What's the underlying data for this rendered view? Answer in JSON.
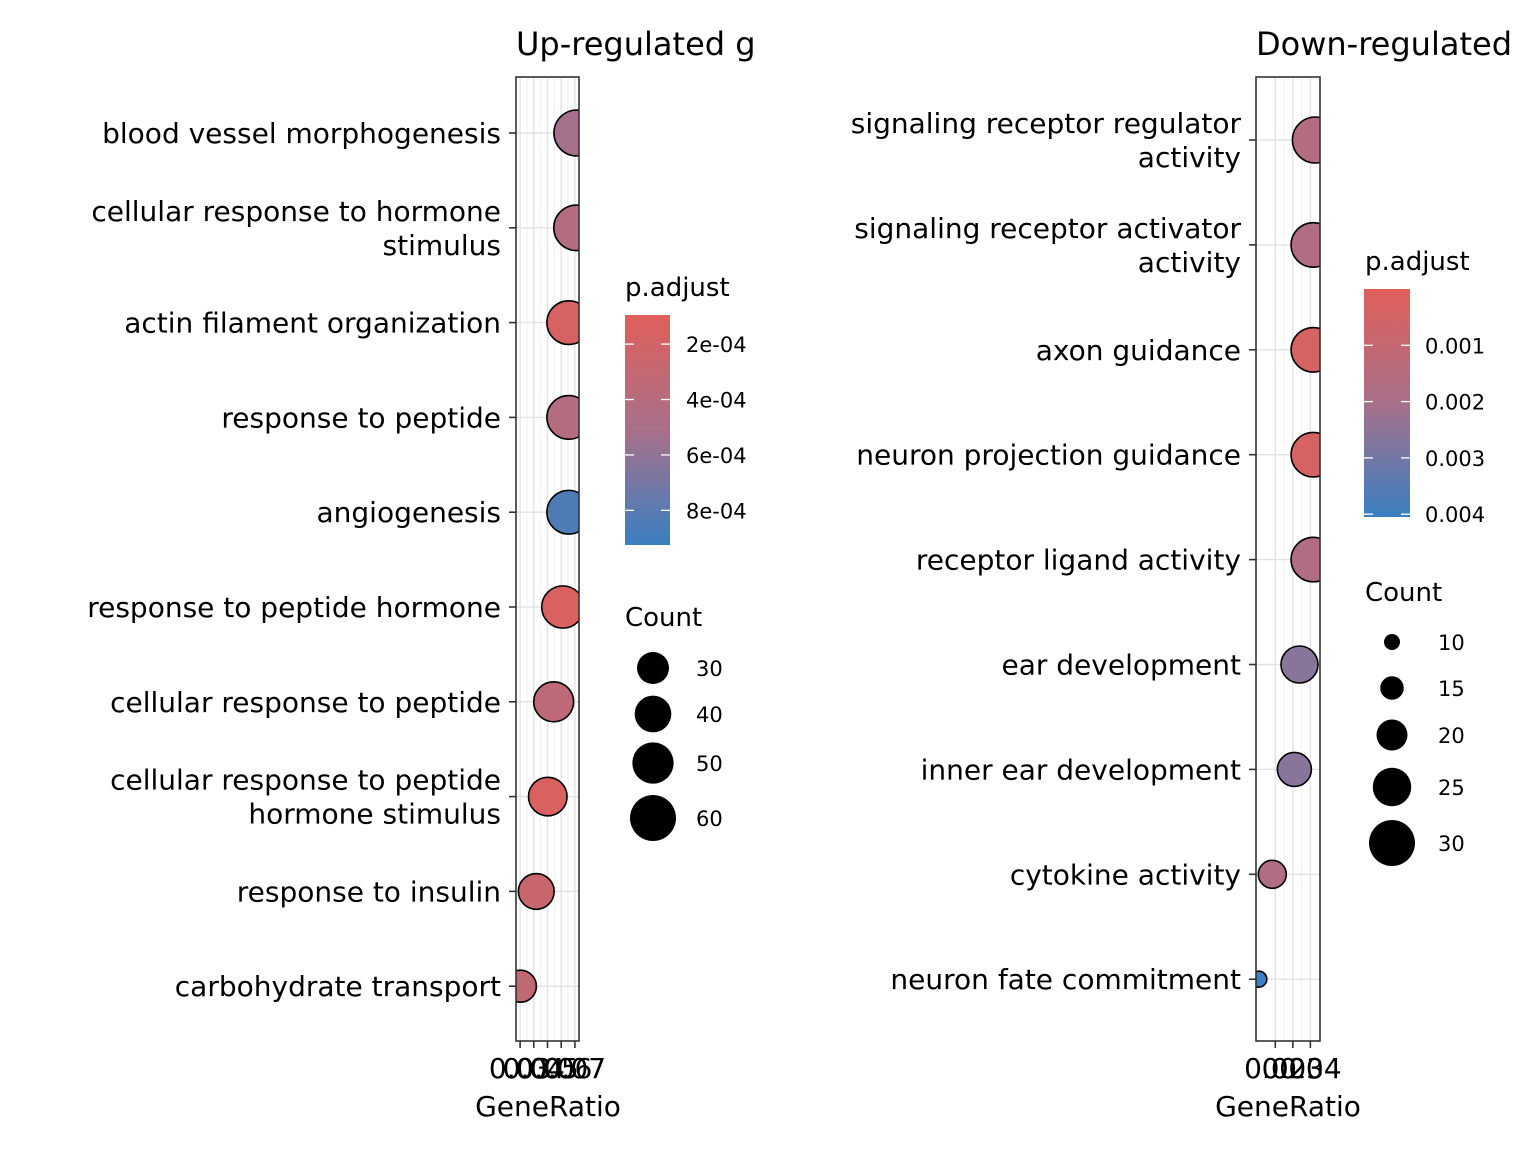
{
  "chart_data": [
    {
      "type": "scatter",
      "title": "Up-regulated g",
      "xlabel": "GeneRatio",
      "x_ticks": [
        "0.03",
        "0.04",
        "0.05",
        "0.06",
        "0.07"
      ],
      "xlim": [
        0.027,
        0.073
      ],
      "categories": [
        "blood vessel morphogenesis",
        "cellular response to hormone\nstimulus",
        "actin filament organization",
        "response to peptide",
        "angiogenesis",
        "response to peptide hormone",
        "cellular response to peptide",
        "cellular response to peptide\nhormone stimulus",
        "response to insulin",
        "carbohydrate transport"
      ],
      "x": [
        0.0715,
        0.0712,
        0.0655,
        0.0655,
        0.0655,
        0.0612,
        0.0545,
        0.0502,
        0.0418,
        0.0302
      ],
      "count": [
        60,
        59,
        55,
        55,
        55,
        52,
        47,
        44,
        38,
        30
      ],
      "p_adjust": [
        0.00052,
        0.00042,
        0.00017,
        0.00042,
        0.00085,
        0.00015,
        0.00035,
        0.00015,
        0.00027,
        0.00033
      ],
      "color_legend": {
        "title": "p.adjust",
        "ticks": [
          "2e-04",
          "4e-04",
          "6e-04",
          "8e-04"
        ],
        "tick_values": [
          0.0002,
          0.0004,
          0.0006,
          0.0008
        ],
        "range": [
          9.5e-05,
          0.000925
        ],
        "low_color": "#e05f5a",
        "high_color": "#3a7fc1"
      },
      "size_legend": {
        "title": "Count",
        "values": [
          30,
          40,
          50,
          60
        ],
        "labels": [
          "30",
          "40",
          "50",
          "60"
        ]
      }
    },
    {
      "type": "scatter",
      "title": "Down-regulated",
      "xlabel": "GeneRatio",
      "x_ticks": [
        "0.02",
        "0.03",
        "0.04"
      ],
      "xlim": [
        0.009,
        0.0455
      ],
      "categories": [
        "signaling receptor regulator\nactivity",
        "signaling receptor activator\nactivity",
        "axon guidance",
        "neuron projection guidance",
        "receptor ligand activity",
        "ear development",
        "inner ear development",
        "cytokine activity",
        "neuron fate commitment"
      ],
      "x": [
        0.0429,
        0.0417,
        0.0417,
        0.0417,
        0.0417,
        0.0338,
        0.0309,
        0.0183,
        0.0106
      ],
      "count": [
        30,
        29,
        29,
        29,
        29,
        24,
        22,
        18,
        10
      ],
      "p_adjust": [
        0.0016,
        0.0017,
        0.00033,
        0.00036,
        0.0017,
        0.0026,
        0.0026,
        0.0017,
        0.0042
      ],
      "color_legend": {
        "title": "p.adjust",
        "ticks": [
          "0.001",
          "0.002",
          "0.003",
          "0.004"
        ],
        "tick_values": [
          0.001,
          0.002,
          0.003,
          0.004
        ],
        "range": [
          0.0,
          0.00405
        ],
        "low_color": "#e05f5a",
        "high_color": "#3a7fc1"
      },
      "size_legend": {
        "title": "Count",
        "values": [
          10,
          15,
          20,
          25,
          30
        ],
        "labels": [
          "10",
          "15",
          "20",
          "25",
          "30"
        ]
      }
    }
  ]
}
